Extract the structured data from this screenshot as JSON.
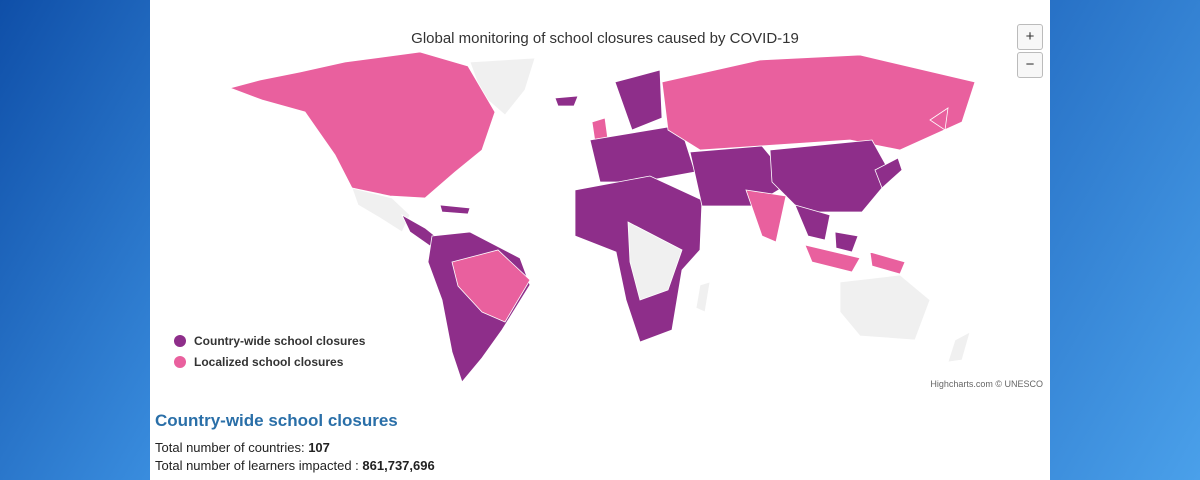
{
  "header": {
    "title": "Global monitoring of school closures caused by COVID-19"
  },
  "zoom": {
    "in": "+",
    "out": "−"
  },
  "legend": [
    {
      "label": "Country-wide school closures",
      "color": "#8e2e8a"
    },
    {
      "label": "Localized school closures",
      "color": "#e9609e"
    }
  ],
  "credit": "Highcharts.com © UNESCO",
  "summary": {
    "heading": "Country-wide school closures",
    "rows": [
      {
        "label": "Total number of countries:",
        "value": "107"
      },
      {
        "label": "Total number of learners impacted :",
        "value": "861,737,696"
      }
    ]
  }
}
